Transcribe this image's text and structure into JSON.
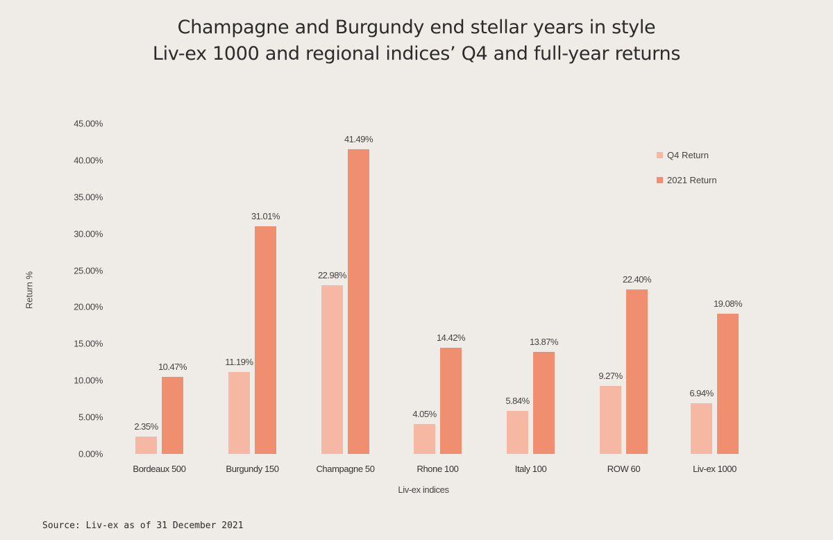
{
  "header": {
    "title": "Champagne and Burgundy end stellar years in style",
    "subtitle": "Liv-ex 1000 and regional indices’ Q4 and full-year returns"
  },
  "axes": {
    "ylabel": "Return %",
    "xlabel": "Liv-ex indices",
    "yticks": [
      "0.00%",
      "5.00%",
      "10.00%",
      "15.00%",
      "20.00%",
      "25.00%",
      "30.00%",
      "35.00%",
      "40.00%",
      "45.00%"
    ]
  },
  "legend": [
    {
      "label": "Q4 Return",
      "color": "#f7b8a3"
    },
    {
      "label": "2021 Return",
      "color": "#f08e70"
    }
  ],
  "groups": [
    {
      "name": "Bordeaux 500",
      "q4": 2.35,
      "q4_label": "2.35%",
      "y21": 10.47,
      "y21_label": "10.47%"
    },
    {
      "name": "Burgundy 150",
      "q4": 11.19,
      "q4_label": "11.19%",
      "y21": 31.01,
      "y21_label": "31.01%"
    },
    {
      "name": "Champagne 50",
      "q4": 22.98,
      "q4_label": "22.98%",
      "y21": 41.49,
      "y21_label": "41.49%"
    },
    {
      "name": "Rhone 100",
      "q4": 4.05,
      "q4_label": "4.05%",
      "y21": 14.42,
      "y21_label": "14.42%"
    },
    {
      "name": "Italy 100",
      "q4": 5.84,
      "q4_label": "5.84%",
      "y21": 13.87,
      "y21_label": "13.87%"
    },
    {
      "name": "ROW 60",
      "q4": 9.27,
      "q4_label": "9.27%",
      "y21": 22.4,
      "y21_label": "22.40%"
    },
    {
      "name": "Liv-ex 1000",
      "q4": 6.94,
      "q4_label": "6.94%",
      "y21": 19.08,
      "y21_label": "19.08%"
    }
  ],
  "footer": {
    "source": "Source: Liv-ex as of 31 December 2021"
  },
  "chart_data": {
    "type": "bar",
    "title": "Champagne and Burgundy end stellar years in style",
    "subtitle": "Liv-ex 1000 and regional indices’ Q4 and full-year returns",
    "categories": [
      "Bordeaux 500",
      "Burgundy 150",
      "Champagne 50",
      "Rhone 100",
      "Italy 100",
      "ROW 60",
      "Liv-ex 1000"
    ],
    "series": [
      {
        "name": "Q4 Return",
        "color": "#f7b8a3",
        "values": [
          2.35,
          11.19,
          22.98,
          4.05,
          5.84,
          9.27,
          6.94
        ]
      },
      {
        "name": "2021 Return",
        "color": "#f08e70",
        "values": [
          10.47,
          31.01,
          41.49,
          14.42,
          13.87,
          22.4,
          19.08
        ]
      }
    ],
    "xlabel": "Liv-ex indices",
    "ylabel": "Return %",
    "ylim": [
      0,
      45
    ],
    "yticks": [
      0,
      5,
      10,
      15,
      20,
      25,
      30,
      35,
      40,
      45
    ],
    "ytick_format": "0.00%",
    "grid": false,
    "legend_position": "upper right",
    "data_labels": true,
    "source": "Source: Liv-ex as of 31 December 2021"
  }
}
